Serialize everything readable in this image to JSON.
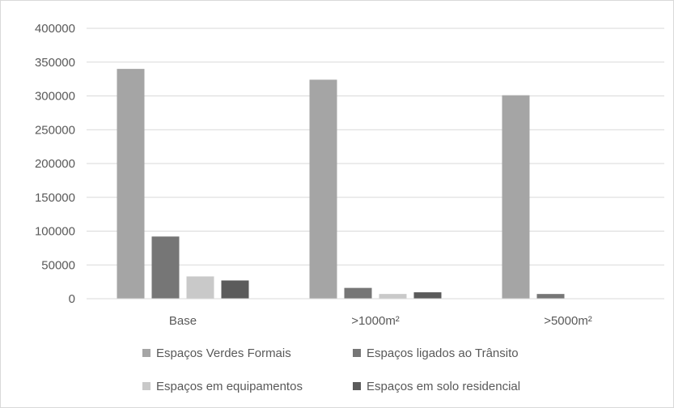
{
  "chart_data": {
    "type": "bar",
    "categories": [
      "Base",
      ">1000m²",
      ">5000m²"
    ],
    "series": [
      {
        "name": "Espaços Verdes Formais",
        "values": [
          340000,
          324000,
          301000
        ],
        "color": "#a5a5a5"
      },
      {
        "name": "Espaços ligados ao Trânsito",
        "values": [
          92000,
          16000,
          7000
        ],
        "color": "#767676"
      },
      {
        "name": "Espaços em equipamentos",
        "values": [
          33000,
          7000,
          0
        ],
        "color": "#c9c9c9"
      },
      {
        "name": "Espaços em solo residencial",
        "values": [
          27000,
          9500,
          0
        ],
        "color": "#5b5b5b"
      }
    ],
    "yticks": [
      "0",
      "50000",
      "100000",
      "150000",
      "200000",
      "250000",
      "300000",
      "350000",
      "400000"
    ],
    "ylim": [
      0,
      400000
    ],
    "grid": true,
    "legend_position": "bottom"
  }
}
